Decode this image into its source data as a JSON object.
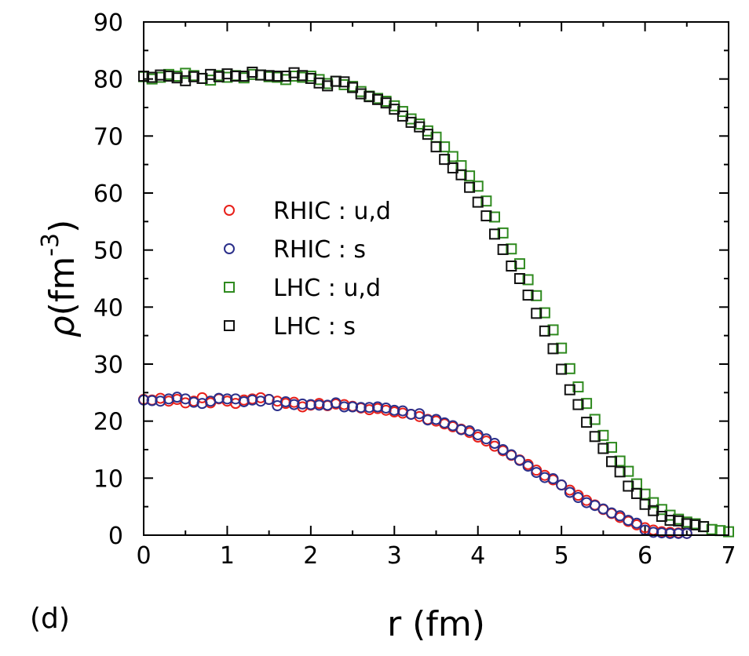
{
  "chart_data": {
    "type": "scatter",
    "panel_label": "(d)",
    "xlabel": "r (fm)",
    "ylabel": {
      "symbol": "ρ",
      "unit": "fm",
      "exponent": "-3"
    },
    "xlim": [
      0,
      7
    ],
    "ylim": [
      0,
      90
    ],
    "xticks": [
      0,
      1,
      2,
      3,
      4,
      5,
      6,
      7
    ],
    "yticks": [
      0,
      10,
      20,
      30,
      40,
      50,
      60,
      70,
      80,
      90
    ],
    "legend_position": "middle-left",
    "series": [
      {
        "name": "RHIC : u,d",
        "marker": "circle",
        "color": "#e8201a",
        "x": [
          0.0,
          0.1,
          0.2,
          0.3,
          0.4,
          0.5,
          0.6,
          0.7,
          0.8,
          0.9,
          1.0,
          1.1,
          1.2,
          1.3,
          1.4,
          1.5,
          1.6,
          1.7,
          1.8,
          1.9,
          2.0,
          2.1,
          2.2,
          2.3,
          2.4,
          2.5,
          2.6,
          2.7,
          2.8,
          2.9,
          3.0,
          3.1,
          3.2,
          3.3,
          3.4,
          3.5,
          3.6,
          3.7,
          3.8,
          3.9,
          4.0,
          4.1,
          4.2,
          4.3,
          4.4,
          4.5,
          4.6,
          4.7,
          4.8,
          4.9,
          5.0,
          5.1,
          5.2,
          5.3,
          5.4,
          5.5,
          5.6,
          5.7,
          5.8,
          5.9,
          6.0,
          6.1,
          6.2,
          6.3,
          6.4,
          6.5
        ],
        "y": [
          23.8,
          23.7,
          24.0,
          23.5,
          23.8,
          23.2,
          23.5,
          24.1,
          23.2,
          23.9,
          23.5,
          23.1,
          23.7,
          23.9,
          24.1,
          23.8,
          23.5,
          23.1,
          23.3,
          22.5,
          22.8,
          23.1,
          22.7,
          23.0,
          22.9,
          22.6,
          22.3,
          22.0,
          22.2,
          21.9,
          21.6,
          21.4,
          21.2,
          20.8,
          20.3,
          20.0,
          19.5,
          19.0,
          18.6,
          18.0,
          17.2,
          16.5,
          15.6,
          14.8,
          14.0,
          13.2,
          12.4,
          11.4,
          10.5,
          9.7,
          8.8,
          7.9,
          7.0,
          6.1,
          5.3,
          4.5,
          3.8,
          3.1,
          2.4,
          1.8,
          1.3,
          0.9,
          0.6,
          0.5,
          0.4,
          0.3
        ]
      },
      {
        "name": "RHIC : s",
        "marker": "circle",
        "color": "#2b2f8a",
        "x": [
          0.0,
          0.1,
          0.2,
          0.3,
          0.4,
          0.5,
          0.6,
          0.7,
          0.8,
          0.9,
          1.0,
          1.1,
          1.2,
          1.3,
          1.4,
          1.5,
          1.6,
          1.7,
          1.8,
          1.9,
          2.0,
          2.1,
          2.2,
          2.3,
          2.4,
          2.5,
          2.6,
          2.7,
          2.8,
          2.9,
          3.0,
          3.1,
          3.2,
          3.3,
          3.4,
          3.5,
          3.6,
          3.7,
          3.8,
          3.9,
          4.0,
          4.1,
          4.2,
          4.3,
          4.4,
          4.5,
          4.6,
          4.7,
          4.8,
          4.9,
          5.0,
          5.1,
          5.2,
          5.3,
          5.4,
          5.5,
          5.6,
          5.7,
          5.8,
          5.9,
          6.0,
          6.1,
          6.2,
          6.3,
          6.4,
          6.5
        ],
        "y": [
          23.7,
          23.6,
          23.5,
          23.9,
          24.2,
          23.9,
          23.3,
          23.1,
          23.5,
          24.0,
          23.9,
          23.9,
          23.4,
          23.7,
          23.5,
          23.8,
          22.7,
          23.4,
          22.9,
          23.0,
          22.9,
          22.8,
          22.8,
          23.2,
          22.5,
          22.5,
          22.4,
          22.4,
          22.5,
          22.3,
          21.9,
          21.8,
          21.2,
          21.3,
          20.2,
          20.3,
          19.7,
          19.2,
          18.5,
          18.3,
          17.6,
          16.9,
          16.1,
          15.0,
          14.1,
          13.1,
          12.1,
          11.0,
          10.1,
          9.9,
          8.8,
          7.5,
          6.6,
          5.7,
          5.2,
          4.6,
          3.9,
          3.4,
          2.6,
          2.1,
          0.9,
          0.5,
          0.4,
          0.3,
          0.3,
          0.3
        ]
      },
      {
        "name": "LHC : u,d",
        "marker": "square",
        "color": "#2f8a1f",
        "x": [
          0.0,
          0.1,
          0.2,
          0.3,
          0.4,
          0.5,
          0.6,
          0.7,
          0.8,
          0.9,
          1.0,
          1.1,
          1.2,
          1.3,
          1.4,
          1.5,
          1.6,
          1.7,
          1.8,
          1.9,
          2.0,
          2.1,
          2.2,
          2.3,
          2.4,
          2.5,
          2.6,
          2.7,
          2.8,
          2.9,
          3.0,
          3.1,
          3.2,
          3.3,
          3.4,
          3.5,
          3.6,
          3.7,
          3.8,
          3.9,
          4.0,
          4.1,
          4.2,
          4.3,
          4.4,
          4.5,
          4.6,
          4.7,
          4.8,
          4.9,
          5.0,
          5.1,
          5.2,
          5.3,
          5.4,
          5.5,
          5.6,
          5.7,
          5.8,
          5.9,
          6.0,
          6.1,
          6.2,
          6.3,
          6.4,
          6.5,
          6.6,
          6.7,
          6.8,
          6.9,
          7.0
        ],
        "y": [
          80.4,
          80.0,
          80.3,
          80.8,
          80.5,
          81.0,
          80.6,
          80.1,
          79.8,
          80.6,
          80.3,
          80.6,
          80.2,
          80.8,
          80.7,
          80.4,
          80.3,
          79.9,
          80.5,
          80.3,
          80.5,
          79.9,
          79.2,
          79.6,
          79.0,
          78.7,
          77.8,
          77.0,
          76.6,
          76.1,
          75.3,
          74.3,
          73.0,
          72.1,
          70.9,
          69.8,
          68.1,
          66.4,
          64.8,
          63.0,
          61.2,
          58.6,
          55.8,
          53.0,
          50.2,
          47.6,
          44.8,
          42.0,
          39.0,
          36.0,
          32.8,
          29.2,
          26.0,
          23.1,
          20.3,
          17.5,
          15.4,
          13.0,
          11.2,
          9.0,
          7.2,
          5.7,
          4.5,
          3.5,
          2.8,
          2.3,
          2.0,
          1.5,
          1.0,
          0.8,
          0.6
        ]
      },
      {
        "name": "LHC : s",
        "marker": "square",
        "color": "#111111",
        "x": [
          0.0,
          0.1,
          0.2,
          0.3,
          0.4,
          0.5,
          0.6,
          0.7,
          0.8,
          0.9,
          1.0,
          1.1,
          1.2,
          1.3,
          1.4,
          1.5,
          1.6,
          1.7,
          1.8,
          1.9,
          2.0,
          2.1,
          2.2,
          2.3,
          2.4,
          2.5,
          2.6,
          2.7,
          2.8,
          2.9,
          3.0,
          3.1,
          3.2,
          3.3,
          3.4,
          3.5,
          3.6,
          3.7,
          3.8,
          3.9,
          4.0,
          4.1,
          4.2,
          4.3,
          4.4,
          4.5,
          4.6,
          4.7,
          4.8,
          4.9,
          5.0,
          5.1,
          5.2,
          5.3,
          5.4,
          5.5,
          5.6,
          5.7,
          5.8,
          5.9,
          6.0,
          6.1,
          6.2,
          6.3,
          6.4,
          6.5,
          6.6,
          6.7
        ],
        "y": [
          80.5,
          80.3,
          80.7,
          80.5,
          80.2,
          79.7,
          80.4,
          80.1,
          80.8,
          80.4,
          80.9,
          80.5,
          80.5,
          81.2,
          80.7,
          80.6,
          80.5,
          80.5,
          81.1,
          80.6,
          80.1,
          79.3,
          78.8,
          79.6,
          79.5,
          78.5,
          77.4,
          76.9,
          76.4,
          75.8,
          74.7,
          73.5,
          72.4,
          71.6,
          70.3,
          68.1,
          65.9,
          64.4,
          63.2,
          61.0,
          58.4,
          56.0,
          52.8,
          50.1,
          47.2,
          45.0,
          42.1,
          38.9,
          35.8,
          32.7,
          29.1,
          25.5,
          22.9,
          19.8,
          17.3,
          15.2,
          12.9,
          11.1,
          8.6,
          7.3,
          5.4,
          4.3,
          3.3,
          2.6,
          2.5,
          2.0,
          1.8,
          1.5
        ]
      }
    ]
  }
}
